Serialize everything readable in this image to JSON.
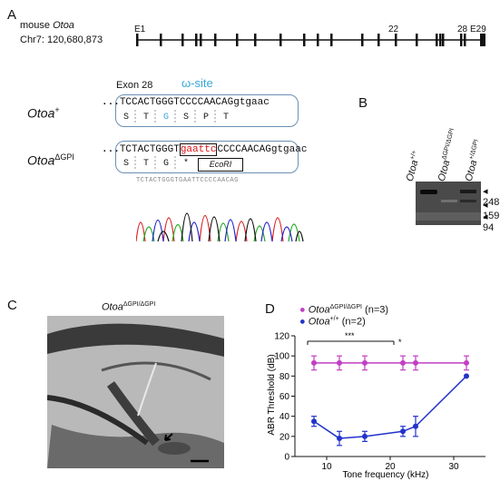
{
  "panelA": {
    "label": "A",
    "gene_line1_prefix": "mouse ",
    "gene_line1_gene": "Otoa",
    "gene_line2": "Chr7: 120,680,873",
    "exon_labels": {
      "e1": "E1",
      "e22": "22",
      "e28": "28",
      "e29": "E29"
    },
    "exon28_label": "Exon 28",
    "omega_label": "ω-site",
    "wt_allele": "Otoa",
    "wt_sup": "+",
    "wt_seq_prefix": "...",
    "wt_seq": "TCCACTGGGTCCCCAACAG",
    "wt_seq_tail": "gtgaac",
    "wt_aa": [
      "S",
      "T",
      "G",
      "S",
      "P",
      "T"
    ],
    "mut_allele": "Otoa",
    "mut_sup": "ΔGPI",
    "mut_seq_prefix": "...",
    "mut_seq_a": "TCTACTGGGT",
    "mut_seq_red": "gaattc",
    "mut_seq_b": "CCCCAACAG",
    "mut_seq_tail": "gtgaac",
    "mut_aa": [
      "S",
      "T",
      "G",
      "*"
    ],
    "ecori": "EcoRI",
    "chrom_seq": "TCTACTGGGTGAATTCCCCAACAG"
  },
  "panelB": {
    "label": "B",
    "lane1": "Otoa",
    "lane1_sup": "+/+",
    "lane2": "Otoa",
    "lane2_sup": "ΔGPI/ΔGPI",
    "lane3": "Otoa",
    "lane3_sup": "+/ΔGPI",
    "sizes": [
      "248",
      "159",
      "94"
    ]
  },
  "panelC": {
    "label": "C",
    "title": "Otoa",
    "title_sup": "ΔGPI/ΔGPI"
  },
  "panelD": {
    "label": "D",
    "legend1_name": "Otoa",
    "legend1_sup": "ΔGPI/ΔGPI",
    "legend1_n": " (n=3)",
    "legend2_name": "Otoa",
    "legend2_sup": "+/+",
    "legend2_n": " (n=2)",
    "sig1": "***",
    "sig2": "*",
    "colors": {
      "mut": "#c23fc2",
      "wt": "#2233cc"
    }
  },
  "chart_data": {
    "type": "line",
    "xlabel": "Tone frequency (kHz)",
    "ylabel": "ABR Threshold (dB)",
    "xlim": [
      5,
      35
    ],
    "ylim": [
      0,
      120
    ],
    "xticks": [
      10,
      20,
      30
    ],
    "yticks": [
      0,
      20,
      40,
      60,
      80,
      100,
      120
    ],
    "grid": false,
    "legend": "top",
    "series": [
      {
        "name": "OtoaΔGPI/ΔGPI (n=3)",
        "x": [
          8,
          12,
          16,
          22,
          24,
          32
        ],
        "y": [
          93,
          93,
          93,
          93,
          93,
          93
        ],
        "err": [
          7,
          7,
          7,
          7,
          7,
          7
        ]
      },
      {
        "name": "Otoa+/+ (n=2)",
        "x": [
          8,
          12,
          16,
          22,
          24,
          32
        ],
        "y": [
          35,
          18,
          20,
          25,
          30,
          80
        ],
        "err": [
          5,
          7,
          5,
          5,
          10,
          0
        ]
      }
    ]
  }
}
